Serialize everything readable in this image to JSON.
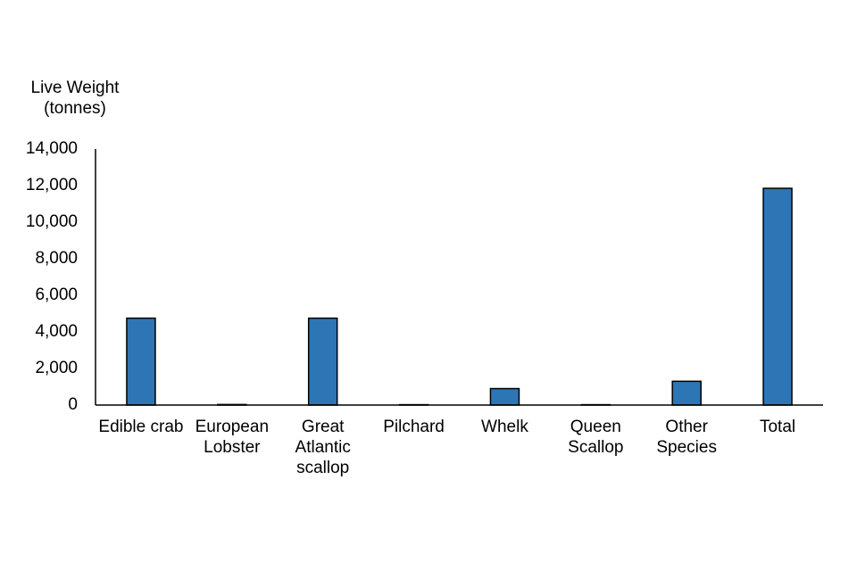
{
  "chart_data": {
    "type": "bar",
    "y_label": "Live Weight (tonnes)",
    "categories": [
      "Edible crab",
      "European Lobster",
      "Great Atlantic scallop",
      "Pilchard",
      "Whelk",
      "Queen Scallop",
      "Other Species",
      "Total"
    ],
    "values": [
      4750,
      30,
      4750,
      20,
      900,
      20,
      1300,
      11850
    ],
    "color": "#2e75b6",
    "ylim": [
      0,
      14000
    ],
    "yticks": [
      0,
      {
        "value": 2000,
        "label": "2,000"
      },
      {
        "value": 4000,
        "label": "4,000"
      },
      {
        "value": 6000,
        "label": "6,000"
      },
      {
        "value": 8000,
        "label": "8,000"
      },
      {
        "value": 10000,
        "label": "10,000"
      },
      {
        "value": 12000,
        "label": "12,000"
      },
      {
        "value": 14000,
        "label": "14,000"
      }
    ],
    "grid": false
  }
}
